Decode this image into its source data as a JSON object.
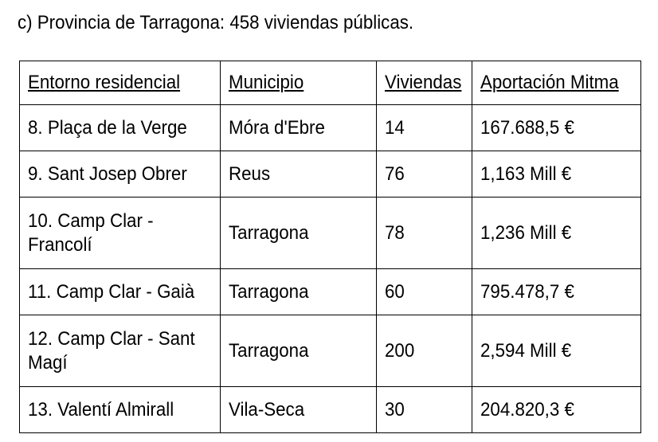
{
  "heading": "c) Provincia de Tarragona: 458 viviendas públicas.",
  "table": {
    "headers": [
      "Entorno residencial",
      "Municipio",
      "Viviendas",
      "Aportación Mitma"
    ],
    "rows": [
      [
        "8. Plaça de la Verge",
        "Móra d'Ebre",
        "14",
        "167.688,5 €"
      ],
      [
        "9. Sant Josep Obrer",
        "Reus",
        "76",
        "1,163 Mill €"
      ],
      [
        "10. Camp Clar - Francolí",
        "Tarragona",
        "78",
        "1,236 Mill €"
      ],
      [
        "11. Camp Clar - Gaià",
        "Tarragona",
        "60",
        "795.478,7 €"
      ],
      [
        "12. Camp Clar - Sant Magí",
        "Tarragona",
        "200",
        "2,594 Mill €"
      ],
      [
        "13. Valentí Almirall",
        "Vila-Seca",
        "30",
        "204.820,3 €"
      ]
    ]
  }
}
